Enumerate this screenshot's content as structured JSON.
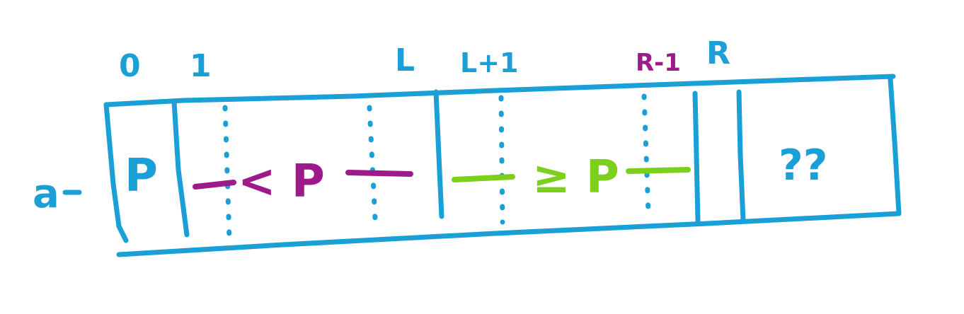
{
  "colors": {
    "structure": "#1a9fd6",
    "less_than_region": "#9c1a8a",
    "greater_equal_region": "#7ccf1a",
    "background": "#ffffff"
  },
  "array_label": "a",
  "index_labels": {
    "i0": "0",
    "i1": "1",
    "l": "L",
    "l_plus_1": "L+1",
    "r_minus_1": "R-1",
    "r": "R"
  },
  "cells": {
    "pivot": "P",
    "less_region": "< P",
    "greater_equal_region": "≥ P",
    "unknown": "??"
  }
}
